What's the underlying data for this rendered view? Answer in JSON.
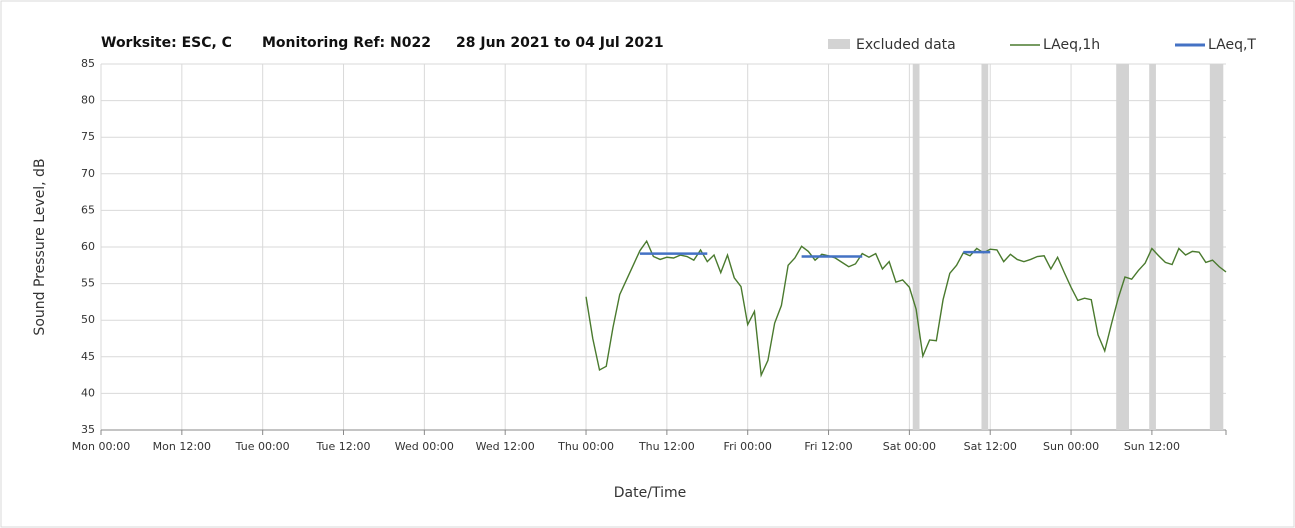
{
  "chart_data": {
    "type": "line",
    "title": [
      "Worksite: ESC, C",
      "Monitoring Ref: N022",
      "28 Jun 2021 to 04 Jul 2021"
    ],
    "x_label": "Date/Time",
    "y_label": "Sound Pressure Level, dB",
    "xlim": [
      0,
      167
    ],
    "ylim": [
      35,
      85
    ],
    "yticks": [
      35,
      40,
      45,
      50,
      55,
      60,
      65,
      70,
      75,
      80,
      85
    ],
    "xticks": [
      {
        "value": 0,
        "label": "Mon 00:00"
      },
      {
        "value": 12,
        "label": "Mon 12:00"
      },
      {
        "value": 24,
        "label": "Tue 00:00"
      },
      {
        "value": 36,
        "label": "Tue 12:00"
      },
      {
        "value": 48,
        "label": "Wed 00:00"
      },
      {
        "value": 60,
        "label": "Wed 12:00"
      },
      {
        "value": 72,
        "label": "Thu 00:00"
      },
      {
        "value": 84,
        "label": "Thu 12:00"
      },
      {
        "value": 96,
        "label": "Fri 00:00"
      },
      {
        "value": 108,
        "label": "Fri 12:00"
      },
      {
        "value": 120,
        "label": "Sat 00:00"
      },
      {
        "value": 132,
        "label": "Sat 12:00"
      },
      {
        "value": 144,
        "label": "Sun 00:00"
      },
      {
        "value": 156,
        "label": "Sun 12:00"
      }
    ],
    "grid": true,
    "excluded": {
      "name": "Excluded data",
      "color": "#d3d3d3",
      "ranges": [
        [
          120.5,
          121.5
        ],
        [
          130.7,
          131.7
        ],
        [
          150.7,
          152.6
        ],
        [
          155.6,
          156.6
        ],
        [
          164.6,
          166.6
        ]
      ]
    },
    "x": [
      72,
      73,
      74,
      75,
      76,
      77,
      78,
      79,
      80,
      81,
      82,
      83,
      84,
      85,
      86,
      87,
      88,
      89,
      90,
      91,
      92,
      93,
      94,
      95,
      96,
      97,
      98,
      99,
      100,
      101,
      102,
      103,
      104,
      105,
      106,
      107,
      108,
      109,
      110,
      111,
      112,
      113,
      114,
      115,
      116,
      117,
      118,
      119,
      120,
      121,
      122,
      123,
      124,
      125,
      126,
      127,
      128,
      129,
      130,
      131,
      132,
      133,
      134,
      135,
      136,
      137,
      138,
      139,
      140,
      141,
      142,
      143,
      144,
      145,
      146,
      147,
      148,
      149,
      150,
      151,
      152,
      153,
      154,
      155,
      156,
      157,
      158,
      159,
      160,
      161,
      162,
      163,
      164,
      165,
      166,
      167
    ],
    "series": [
      {
        "name": "LAeq,1h",
        "color": "#4a7a2e",
        "values": [
          53.2,
          47.5,
          43.2,
          43.7,
          49,
          53.5,
          55.5,
          57.5,
          59.5,
          60.8,
          58.7,
          58.3,
          58.6,
          58.5,
          58.9,
          58.7,
          58.2,
          59.6,
          58,
          58.9,
          56.5,
          58.9,
          55.8,
          54.6,
          49.4,
          51.2,
          42.5,
          44.5,
          49.6,
          52,
          57.5,
          58.5,
          60.1,
          59.4,
          58.2,
          59,
          58.8,
          58.5,
          57.9,
          57.3,
          57.7,
          59.1,
          58.6,
          59.1,
          57,
          58,
          55.2,
          55.5,
          54.5,
          51.5,
          45.1,
          47.3,
          47.2,
          52.8,
          56.4,
          57.5,
          59.2,
          58.8,
          59.8,
          59.2,
          59.7,
          59.6,
          58,
          59,
          58.3,
          58,
          58.3,
          58.7,
          58.8,
          57,
          58.6,
          56.5,
          54.5,
          52.7,
          53,
          52.8,
          48,
          45.8,
          49.5,
          53,
          55.9,
          55.6,
          56.8,
          57.8,
          59.8,
          58.8,
          57.9,
          57.6,
          59.8,
          58.9,
          59.4,
          59.3,
          57.9,
          58.2,
          57.3,
          56.6
        ]
      }
    ],
    "period": {
      "name": "LAeq,T",
      "color": "#4472c4",
      "segments": [
        {
          "start": 80,
          "end": 90,
          "value": 59.1
        },
        {
          "start": 104,
          "end": 113,
          "value": 58.7
        },
        {
          "start": 128,
          "end": 132,
          "value": 59.3
        }
      ]
    }
  }
}
